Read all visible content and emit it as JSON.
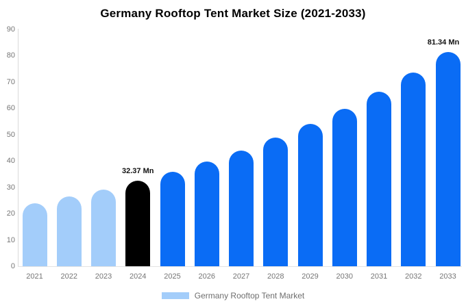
{
  "chart_data": {
    "type": "bar",
    "title": "Germany Rooftop Tent Market Size (2021-2033)",
    "unit": "Mn",
    "categories": [
      "2021",
      "2022",
      "2023",
      "2024",
      "2025",
      "2026",
      "2027",
      "2028",
      "2029",
      "2030",
      "2031",
      "2032",
      "2033"
    ],
    "values": [
      23.8,
      26.4,
      29.2,
      32.37,
      35.9,
      39.7,
      44.0,
      48.8,
      54.0,
      59.8,
      66.3,
      73.4,
      81.34
    ],
    "bar_colors": [
      "#a3cdfa",
      "#a3cdfa",
      "#a3cdfa",
      "#000000",
      "#0a6cf5",
      "#0a6cf5",
      "#0a6cf5",
      "#0a6cf5",
      "#0a6cf5",
      "#0a6cf5",
      "#0a6cf5",
      "#0a6cf5",
      "#0a6cf5"
    ],
    "annotations": [
      {
        "category": "2024",
        "text": "32.37 Mn"
      },
      {
        "category": "2033",
        "text": "81.34 Mn"
      }
    ],
    "ylim": [
      0,
      90
    ],
    "yticks": [
      0,
      10,
      20,
      30,
      40,
      50,
      60,
      70,
      80,
      90
    ],
    "xlabel": "",
    "ylabel": "",
    "grid": false,
    "legend_position": "bottom"
  },
  "legend": {
    "label": "Germany Rooftop Tent Market",
    "swatch_color": "#a3cdfa"
  },
  "colors": {
    "historical_bar": "#a3cdfa",
    "base_year_bar": "#000000",
    "forecast_bar": "#0a6cf5",
    "axis_text": "#757575",
    "axis_line": "#d9d9d9",
    "title_text": "#000000"
  }
}
